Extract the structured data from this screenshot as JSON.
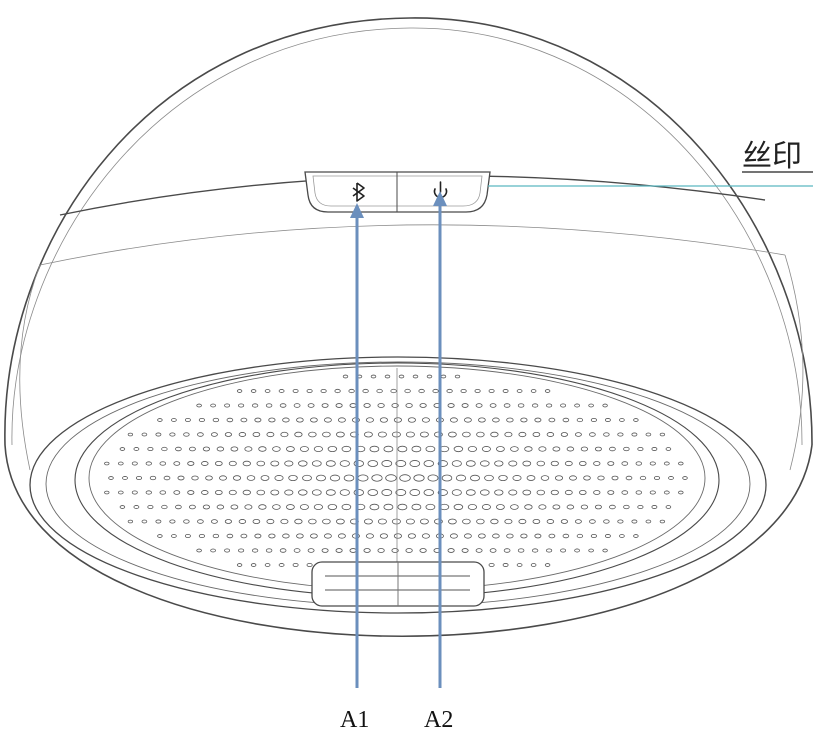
{
  "labels": {
    "callout": "丝印",
    "a1": "A1",
    "a2": "A2"
  },
  "buttons": {
    "bluetooth": "bluetooth-icon",
    "power": "power-icon"
  },
  "colors": {
    "outline": "#4a4a4a",
    "arrow": "#6b8fbd",
    "leader": "#5bb7c0"
  }
}
